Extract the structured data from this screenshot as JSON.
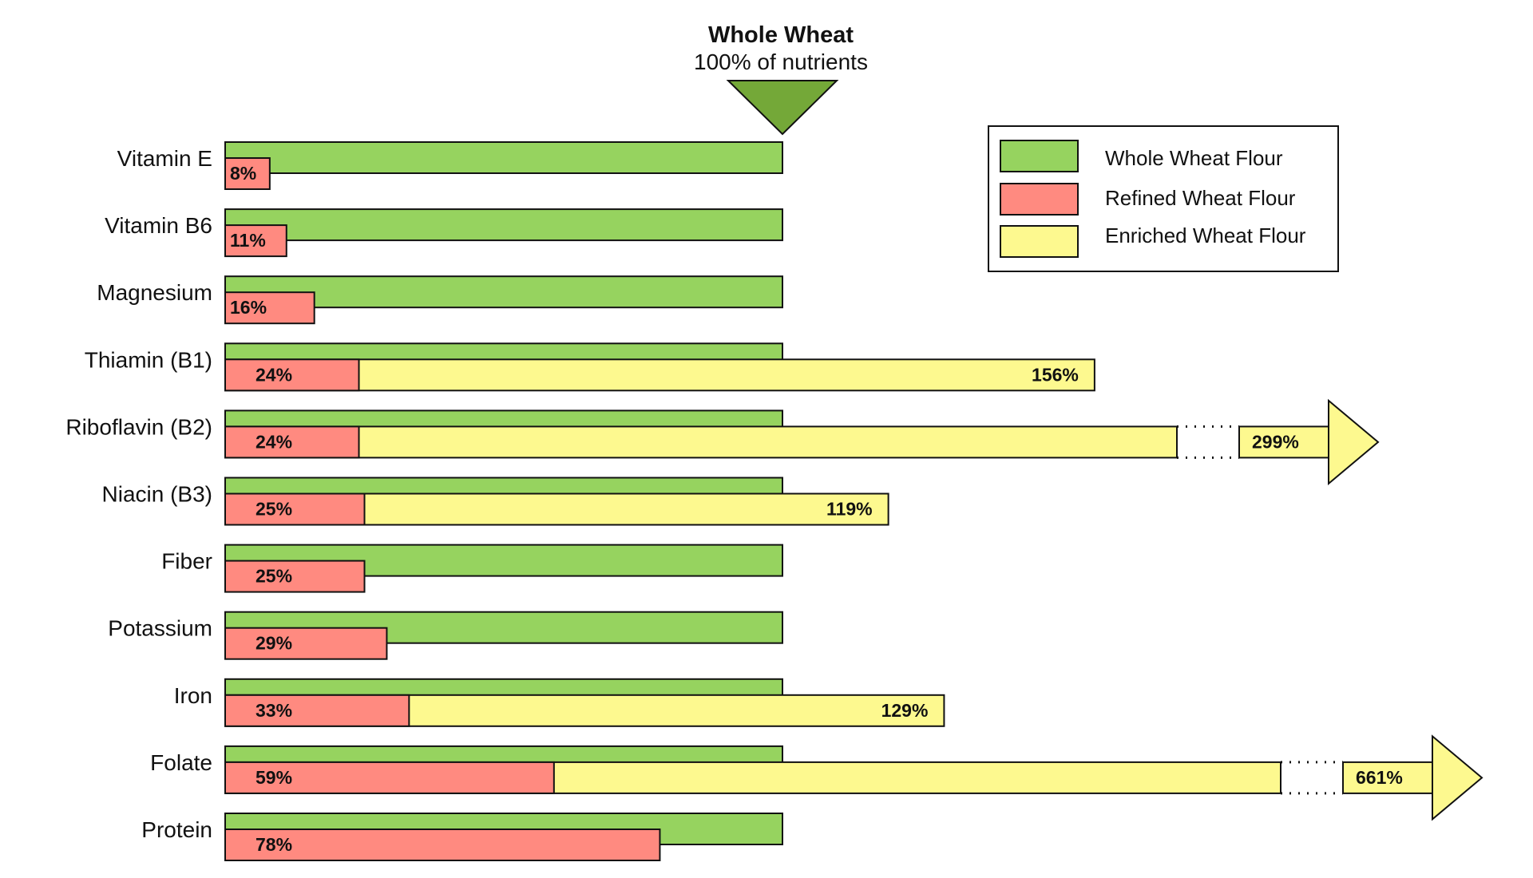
{
  "chart_data": {
    "type": "bar",
    "title": "Whole Wheat",
    "subtitle": "100% of nutrients",
    "categories": [
      "Vitamin E",
      "Vitamin B6",
      "Magnesium",
      "Thiamin (B1)",
      "Riboflavin (B2)",
      "Niacin (B3)",
      "Fiber",
      "Potassium",
      "Iron",
      "Folate",
      "Protein"
    ],
    "series": [
      {
        "name": "Whole Wheat Flour",
        "values": [
          100,
          100,
          100,
          100,
          100,
          100,
          100,
          100,
          100,
          100,
          100
        ]
      },
      {
        "name": "Refined Wheat Flour",
        "values": [
          8,
          11,
          16,
          24,
          24,
          25,
          25,
          29,
          33,
          59,
          78
        ]
      },
      {
        "name": "Enriched Wheat Flour",
        "values": [
          null,
          null,
          null,
          156,
          299,
          119,
          null,
          null,
          129,
          661,
          null
        ]
      }
    ],
    "value_labels": {
      "refined": [
        "8%",
        "11%",
        "16%",
        "24%",
        "24%",
        "25%",
        "25%",
        "29%",
        "33%",
        "59%",
        "78%"
      ],
      "enriched": [
        "",
        "",
        "",
        "156%",
        "299%",
        "119%",
        "",
        "",
        "129%",
        "661%",
        ""
      ]
    },
    "truncated": [
      false,
      false,
      false,
      false,
      true,
      false,
      false,
      false,
      false,
      true,
      false
    ],
    "legend": {
      "position": "top-right",
      "entries": [
        "Whole Wheat Flour",
        "Refined Wheat Flour",
        "Enriched Wheat Flour"
      ]
    },
    "colors": {
      "whole": "#96d35f",
      "refined": "#ff8a80",
      "enriched": "#fdf98f",
      "marker": "#74a838",
      "stroke": "#111111"
    },
    "grid": false
  }
}
